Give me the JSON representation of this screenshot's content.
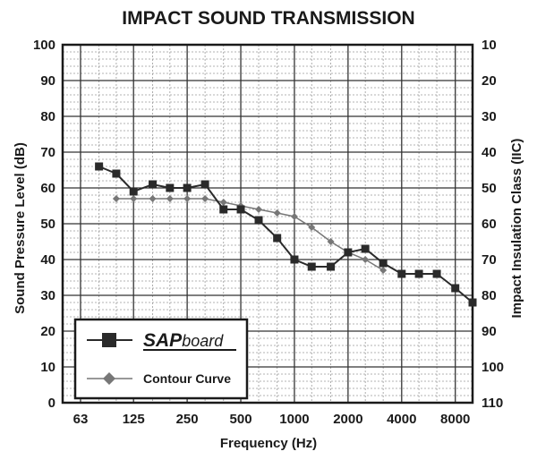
{
  "chart_data": {
    "type": "line",
    "title": "IMPACT SOUND TRANSMISSION",
    "xlabel": "Frequency (Hz)",
    "ylabel": "Sound Pressure Level (dB)",
    "y2label": "Impact Insulation Class (IIC)",
    "x_scale": "log",
    "x_ticks": [
      "63",
      "125",
      "250",
      "500",
      "1000",
      "2000",
      "4000",
      "8000"
    ],
    "y_ticks": [
      "0",
      "10",
      "20",
      "30",
      "40",
      "50",
      "60",
      "70",
      "80",
      "90",
      "100"
    ],
    "y2_ticks": [
      "110",
      "100",
      "90",
      "80",
      "70",
      "60",
      "50",
      "40",
      "30",
      "20",
      "10"
    ],
    "ylim": [
      0,
      100
    ],
    "grid": true,
    "legend_position": "bottom-left",
    "series": [
      {
        "name": "SAPboard",
        "marker": "square",
        "color": "#2a2a2a",
        "x": [
          80,
          100,
          125,
          160,
          200,
          250,
          315,
          400,
          500,
          630,
          800,
          1000,
          1250,
          1600,
          2000,
          2500,
          3150,
          4000,
          5000,
          6300,
          8000,
          10000
        ],
        "values": [
          66,
          64,
          59,
          61,
          60,
          60,
          61,
          54,
          54,
          51,
          46,
          40,
          38,
          38,
          42,
          43,
          39,
          36,
          36,
          36,
          32,
          28
        ]
      },
      {
        "name": "Contour Curve",
        "marker": "diamond",
        "color": "#777777",
        "x": [
          100,
          125,
          160,
          200,
          250,
          315,
          400,
          500,
          630,
          800,
          1000,
          1250,
          1600,
          2000,
          2500,
          3150
        ],
        "values": [
          57,
          57,
          57,
          57,
          57,
          57,
          56,
          55,
          54,
          53,
          52,
          49,
          45,
          42,
          40,
          37
        ]
      }
    ]
  }
}
